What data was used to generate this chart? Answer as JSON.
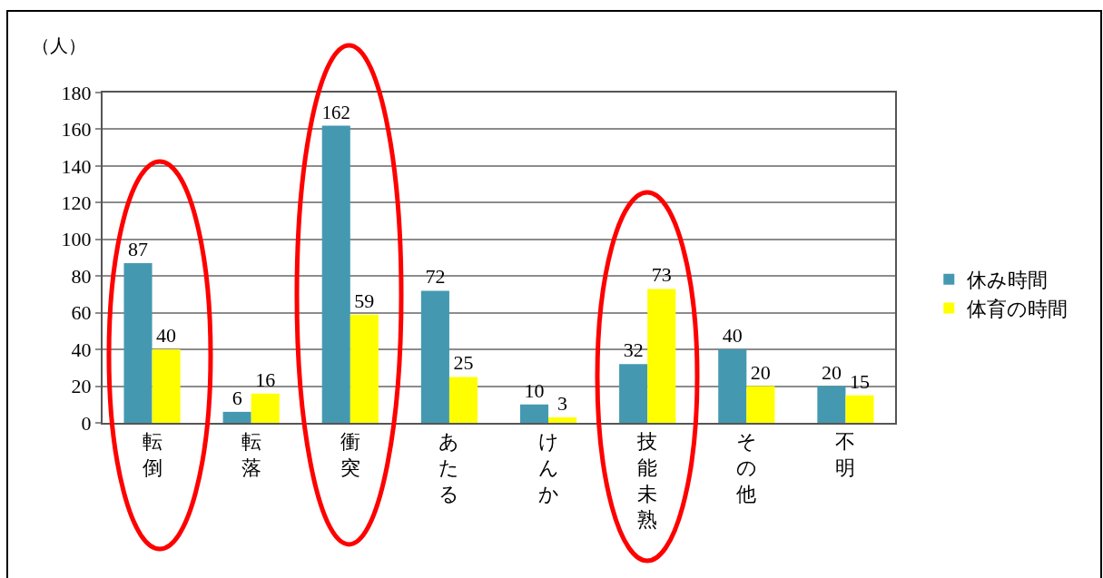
{
  "chart_data": {
    "type": "bar",
    "ylabel": "（人）",
    "categories": [
      "転倒",
      "転落",
      "衝突",
      "あたる",
      "けんか",
      "技能未熟",
      "その他",
      "不明"
    ],
    "series": [
      {
        "name": "休み時間",
        "color": "#4499b1",
        "values": [
          87,
          6,
          162,
          72,
          10,
          32,
          40,
          20
        ]
      },
      {
        "name": "体育の時間",
        "color": "#ffff00",
        "values": [
          40,
          16,
          59,
          25,
          3,
          73,
          20,
          15
        ]
      }
    ],
    "ylim": [
      0,
      180
    ],
    "yticks": [
      0,
      20,
      40,
      60,
      80,
      100,
      120,
      140,
      160,
      180
    ],
    "grid": "y",
    "legend": "right",
    "data_labels": true
  }
}
